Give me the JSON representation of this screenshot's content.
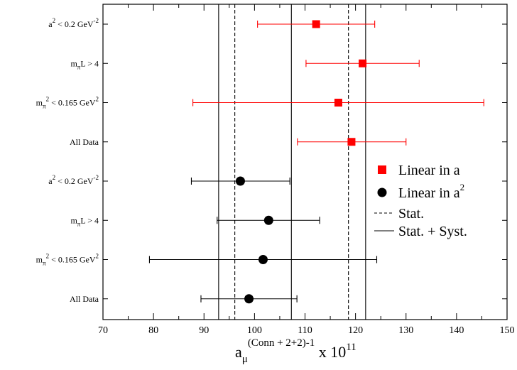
{
  "chart_data": {
    "type": "scatter",
    "subtype": "horizontal-error-bars",
    "xlim": [
      70,
      150
    ],
    "x_ticks": [
      70,
      80,
      90,
      100,
      110,
      120,
      130,
      140,
      150
    ],
    "x_tick_labels": [
      "70",
      "80",
      "90",
      "100",
      "110",
      "120",
      "130",
      "140",
      "150"
    ],
    "xlabel": {
      "base": "a",
      "subscript": "μ",
      "superscript": "(Conn + 2+2)-1",
      "suffix": " x 10",
      "suffix_superscript": "11"
    },
    "grid": false,
    "legend_position": "right",
    "rows": [
      {
        "label": "a² < 0.2 GeV⁻²",
        "label_parts": [
          "a",
          "2",
          " < 0.2 GeV",
          "-2"
        ],
        "series": "Linear in a"
      },
      {
        "label": "mπL > 4",
        "label_parts": [
          "m",
          "π",
          "L > 4"
        ],
        "series": "Linear in a"
      },
      {
        "label": "mπ² < 0.165 GeV²",
        "label_parts": [
          "m",
          "π",
          "2",
          " < 0.165 GeV",
          "2"
        ],
        "series": "Linear in a"
      },
      {
        "label": "All Data",
        "label_parts": [
          "All Data"
        ],
        "series": "Linear in a"
      },
      {
        "label": "a² < 0.2 GeV⁻²",
        "label_parts": [
          "a",
          "2",
          " < 0.2 GeV",
          "-2"
        ],
        "series": "Linear in a²"
      },
      {
        "label": "mπL > 4",
        "label_parts": [
          "m",
          "π",
          "L > 4"
        ],
        "series": "Linear in a²"
      },
      {
        "label": "mπ² < 0.165 GeV²",
        "label_parts": [
          "m",
          "π",
          "2",
          " < 0.165 GeV",
          "2"
        ],
        "series": "Linear in a²"
      },
      {
        "label": "All Data",
        "label_parts": [
          "All Data"
        ],
        "series": "Linear in a²"
      }
    ],
    "series": [
      {
        "name": "Linear in a",
        "legend_label": "Linear in a",
        "marker": "square",
        "color": "#ff0000",
        "points": [
          {
            "x": 112.2,
            "xmin": 100.6,
            "xmax": 123.8
          },
          {
            "x": 121.4,
            "xmin": 110.2,
            "xmax": 132.6
          },
          {
            "x": 116.6,
            "xmin": 87.8,
            "xmax": 145.4
          },
          {
            "x": 119.2,
            "xmin": 108.5,
            "xmax": 130.0
          }
        ]
      },
      {
        "name": "Linear in a²",
        "legend_label": "Linear in a",
        "legend_sup": "2",
        "marker": "circle",
        "color": "#000000",
        "points": [
          {
            "x": 97.2,
            "xmin": 87.5,
            "xmax": 107.0
          },
          {
            "x": 102.8,
            "xmin": 92.6,
            "xmax": 112.9
          },
          {
            "x": 101.7,
            "xmin": 79.2,
            "xmax": 124.2
          },
          {
            "x": 98.9,
            "xmin": 89.4,
            "xmax": 108.4
          }
        ]
      }
    ],
    "reference_lines": [
      {
        "name": "Stat.",
        "style": "dashed",
        "x": [
          96.1,
          118.6
        ]
      },
      {
        "name": "Stat. + Syst.",
        "style": "solid",
        "x": [
          92.9,
          107.3,
          122.0
        ]
      }
    ],
    "legend": [
      {
        "label": "Linear in a",
        "marker": "square"
      },
      {
        "label": "Linear in a",
        "sup": "2",
        "marker": "circle"
      },
      {
        "label": "Stat.",
        "marker": "dashed-line"
      },
      {
        "label": "Stat. + Syst.",
        "marker": "solid-line"
      }
    ]
  }
}
